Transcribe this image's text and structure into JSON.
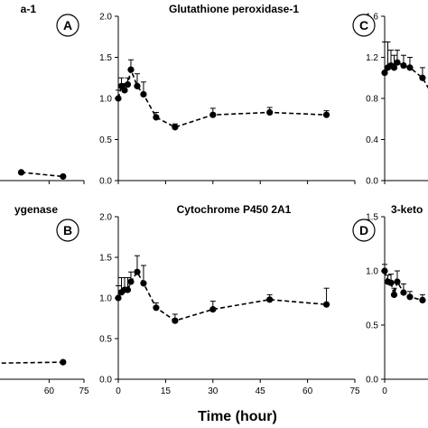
{
  "xlabel": "Time (hour)",
  "chart_data": [
    {
      "panel": "A-left-partial",
      "type": "line",
      "title": "a-1",
      "badge": "A",
      "x": [
        48,
        66
      ],
      "y": [
        0.1,
        0.05
      ],
      "err": [
        0,
        0
      ],
      "xlim": [
        0,
        75
      ],
      "xticks": [
        60,
        75
      ],
      "ylim": [
        0,
        2.0
      ]
    },
    {
      "panel": "B-left-partial",
      "type": "line",
      "title": "ygenase",
      "badge": "B",
      "x": [
        -4,
        66
      ],
      "y": [
        0.18,
        0.21
      ],
      "err": [
        0,
        0
      ],
      "xlim": [
        0,
        75
      ],
      "xticks": [
        60,
        75
      ],
      "ylim": [
        0,
        2.0
      ]
    },
    {
      "panel": "GPx1",
      "type": "line",
      "title": "Glutathione peroxidase-1",
      "x": [
        0,
        1,
        2,
        3,
        4,
        6,
        8,
        12,
        18,
        30,
        48,
        66
      ],
      "y": [
        1.0,
        1.15,
        1.1,
        1.17,
        1.35,
        1.15,
        1.05,
        0.77,
        0.65,
        0.8,
        0.83,
        0.8
      ],
      "err": [
        0.1,
        0.1,
        0.08,
        0.08,
        0.12,
        0.15,
        0.15,
        0.06,
        0.04,
        0.08,
        0.06,
        0.05
      ],
      "xlim": [
        0,
        75
      ],
      "xticks": [
        0,
        15,
        30,
        45,
        60,
        75
      ],
      "ylim": [
        0,
        2.0
      ],
      "yticks": [
        "0.0",
        "0.5",
        "1.0",
        "1.5",
        "2.0"
      ]
    },
    {
      "panel": "CYP2A1",
      "type": "line",
      "title": "Cytochrome P450 2A1",
      "x": [
        0,
        1,
        2,
        3,
        4,
        6,
        8,
        12,
        18,
        30,
        48,
        66
      ],
      "y": [
        1.0,
        1.07,
        1.1,
        1.1,
        1.2,
        1.32,
        1.18,
        0.88,
        0.72,
        0.86,
        0.98,
        0.92
      ],
      "err": [
        0.15,
        0.18,
        0.15,
        0.15,
        0.12,
        0.2,
        0.22,
        0.06,
        0.08,
        0.1,
        0.06,
        0.2
      ],
      "xlim": [
        0,
        75
      ],
      "xticks": [
        0,
        15,
        30,
        45,
        60,
        75
      ],
      "ylim": [
        0,
        2.0
      ],
      "yticks": [
        "0.0",
        "0.5",
        "1.0",
        "1.5",
        "2.0"
      ]
    },
    {
      "panel": "C-right-partial",
      "type": "line",
      "title": "",
      "badge": "C",
      "x": [
        0,
        1,
        2,
        3,
        4,
        6,
        8,
        12,
        18
      ],
      "y": [
        1.05,
        1.1,
        1.12,
        1.1,
        1.15,
        1.12,
        1.1,
        1.0,
        0.68
      ],
      "err": [
        0.3,
        0.25,
        0.15,
        0.12,
        0.12,
        0.1,
        0.1,
        0.1,
        0.08
      ],
      "xlim": [
        0,
        75
      ],
      "xticks": [
        0
      ],
      "ylim": [
        0,
        1.6
      ],
      "yticks": [
        "0.0",
        "0.4",
        "0.8",
        "1.2",
        "1.6"
      ]
    },
    {
      "panel": "D-right-partial",
      "type": "line",
      "title": "3-keto",
      "badge": "D",
      "x": [
        0,
        1,
        2,
        3,
        4,
        6,
        8,
        12,
        18
      ],
      "y": [
        1.0,
        0.9,
        0.89,
        0.78,
        0.9,
        0.8,
        0.76,
        0.73,
        0.67
      ],
      "err": [
        0.06,
        0.06,
        0.08,
        0.06,
        0.1,
        0.08,
        0.05,
        0.05,
        0.05
      ],
      "xlim": [
        0,
        75
      ],
      "xticks": [
        0
      ],
      "ylim": [
        0,
        1.5
      ],
      "yticks": [
        "0.0",
        "0.5",
        "1.0",
        "1.5"
      ]
    }
  ]
}
